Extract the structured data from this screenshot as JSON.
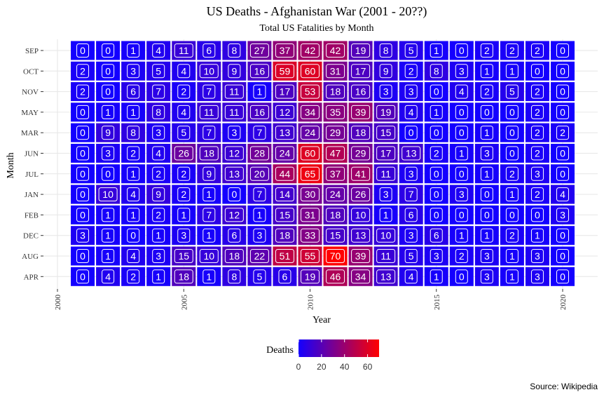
{
  "chart_data": {
    "type": "heatmap",
    "title": "US Deaths - Afghanistan War (2001 - 20??)",
    "subtitle": "Total US Fatalities by Month",
    "xlabel": "Year",
    "ylabel": "Month",
    "caption": "Source: Wikipedia",
    "x_ticks": [
      "2000",
      "2005",
      "2010",
      "2015",
      "2020"
    ],
    "xlim": [
      2000,
      2020
    ],
    "years": [
      2001,
      2002,
      2003,
      2004,
      2005,
      2006,
      2007,
      2008,
      2009,
      2010,
      2011,
      2012,
      2013,
      2014,
      2015,
      2016,
      2017,
      2018,
      2019,
      2020
    ],
    "months": [
      "SEP",
      "OCT",
      "NOV",
      "MAY",
      "MAR",
      "JUN",
      "JUL",
      "JAN",
      "FEB",
      "DEC",
      "AUG",
      "APR"
    ],
    "values": [
      [
        0,
        0,
        1,
        4,
        11,
        6,
        8,
        27,
        37,
        42,
        42,
        19,
        8,
        5,
        1,
        0,
        2,
        2,
        2,
        0
      ],
      [
        2,
        0,
        3,
        5,
        4,
        10,
        9,
        16,
        59,
        60,
        31,
        17,
        9,
        2,
        8,
        3,
        1,
        1,
        0,
        0
      ],
      [
        2,
        0,
        6,
        7,
        2,
        7,
        11,
        1,
        17,
        53,
        18,
        16,
        3,
        3,
        0,
        4,
        2,
        5,
        2,
        0
      ],
      [
        0,
        1,
        1,
        8,
        4,
        11,
        11,
        16,
        12,
        34,
        35,
        39,
        19,
        4,
        1,
        0,
        0,
        0,
        2,
        0
      ],
      [
        0,
        9,
        8,
        3,
        5,
        7,
        3,
        7,
        13,
        24,
        29,
        18,
        15,
        0,
        0,
        0,
        1,
        0,
        2,
        2
      ],
      [
        0,
        3,
        2,
        4,
        26,
        18,
        12,
        28,
        24,
        60,
        47,
        29,
        17,
        13,
        2,
        1,
        3,
        0,
        2,
        0
      ],
      [
        0,
        0,
        1,
        2,
        2,
        9,
        13,
        20,
        44,
        65,
        37,
        41,
        11,
        3,
        0,
        0,
        1,
        2,
        3,
        0
      ],
      [
        0,
        10,
        4,
        9,
        2,
        1,
        0,
        7,
        14,
        30,
        24,
        26,
        3,
        7,
        0,
        3,
        0,
        1,
        2,
        4
      ],
      [
        0,
        1,
        1,
        2,
        1,
        7,
        12,
        1,
        15,
        31,
        18,
        10,
        1,
        6,
        0,
        0,
        0,
        0,
        0,
        3
      ],
      [
        3,
        1,
        0,
        1,
        3,
        1,
        6,
        3,
        18,
        33,
        15,
        13,
        10,
        3,
        6,
        1,
        1,
        2,
        1,
        0
      ],
      [
        0,
        1,
        4,
        3,
        15,
        10,
        18,
        22,
        51,
        55,
        70,
        39,
        11,
        5,
        3,
        2,
        3,
        1,
        3,
        0
      ],
      [
        0,
        4,
        2,
        1,
        18,
        1,
        8,
        5,
        6,
        19,
        46,
        34,
        13,
        4,
        1,
        0,
        3,
        1,
        3,
        0
      ]
    ],
    "legend": {
      "title": "Deaths",
      "ticks": [
        "0",
        "20",
        "40",
        "60"
      ],
      "range": [
        0,
        70
      ],
      "low_color": "#1400FF",
      "high_color": "#FF0000",
      "placement": "bottom"
    },
    "grid": true,
    "tile_label_color": "#ffffff"
  }
}
